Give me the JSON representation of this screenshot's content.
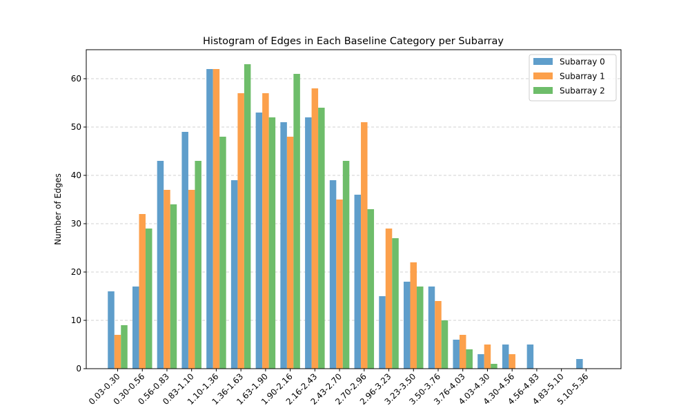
{
  "chart_data": {
    "type": "bar",
    "title": "Histogram of Edges in Each Baseline Category per Subarray",
    "xlabel": "",
    "ylabel": "Number of Edges",
    "ylim": [
      0,
      66
    ],
    "yticks": [
      0,
      10,
      20,
      30,
      40,
      50,
      60
    ],
    "grid": "y-dashed",
    "legend_position": "top-right",
    "categories": [
      "0.03-0.30",
      "0.30-0.56",
      "0.56-0.83",
      "0.83-1.10",
      "1.10-1.36",
      "1.36-1.63",
      "1.63-1.90",
      "1.90-2.16",
      "2.16-2.43",
      "2.43-2.70",
      "2.70-2.96",
      "2.96-3.23",
      "3.23-3.50",
      "3.50-3.76",
      "3.76-4.03",
      "4.03-4.30",
      "4.30-4.56",
      "4.56-4.83",
      "4.83-5.10",
      "5.10-5.36"
    ],
    "series": [
      {
        "name": "Subarray 0",
        "color": "#5f9ecb",
        "values": [
          16,
          17,
          43,
          49,
          62,
          39,
          53,
          51,
          52,
          39,
          36,
          15,
          18,
          17,
          6,
          3,
          5,
          5,
          0,
          2
        ]
      },
      {
        "name": "Subarray 1",
        "color": "#fca04b",
        "values": [
          7,
          32,
          37,
          37,
          62,
          57,
          57,
          48,
          58,
          35,
          51,
          29,
          22,
          14,
          7,
          5,
          3,
          0,
          0,
          0
        ]
      },
      {
        "name": "Subarray 2",
        "color": "#6ebd6a",
        "values": [
          9,
          29,
          34,
          43,
          48,
          63,
          52,
          61,
          54,
          43,
          33,
          27,
          17,
          10,
          4,
          1,
          0,
          0,
          0,
          0
        ]
      }
    ]
  }
}
